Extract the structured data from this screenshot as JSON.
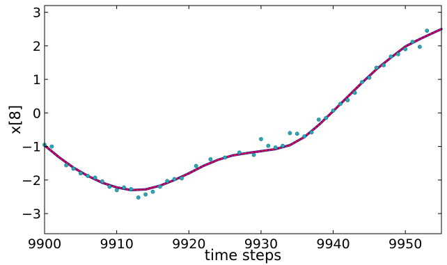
{
  "chart_data": {
    "type": "line",
    "xlabel": "time steps",
    "ylabel": "x[8]",
    "xlim": [
      9900,
      9955
    ],
    "ylim": [
      -3.6,
      3.2
    ],
    "x_ticks": [
      9900,
      9910,
      9920,
      9930,
      9940,
      9950
    ],
    "y_ticks": [
      -3,
      -2,
      -1,
      0,
      1,
      2,
      3
    ],
    "grid": false,
    "series": [
      {
        "style": "solid-line",
        "color": "#1a1aa6",
        "x": [
          9900,
          9902,
          9904,
          9906,
          9908,
          9910,
          9912,
          9914,
          9916,
          9918,
          9920,
          9922,
          9924,
          9926,
          9928,
          9930,
          9932,
          9934,
          9936,
          9938,
          9940,
          9942,
          9944,
          9946,
          9948,
          9950,
          9952,
          9954,
          9955
        ],
        "y": [
          -0.97,
          -1.32,
          -1.63,
          -1.88,
          -2.08,
          -2.22,
          -2.3,
          -2.28,
          -2.17,
          -2.0,
          -1.8,
          -1.58,
          -1.4,
          -1.27,
          -1.2,
          -1.14,
          -1.08,
          -0.96,
          -0.72,
          -0.36,
          0.05,
          0.48,
          0.9,
          1.3,
          1.65,
          1.98,
          2.2,
          2.4,
          2.5
        ]
      },
      {
        "style": "dotted-line",
        "color": "#ff0033",
        "x": [
          9900,
          9902,
          9904,
          9906,
          9908,
          9910,
          9912,
          9914,
          9916,
          9918,
          9920,
          9922,
          9924,
          9926,
          9928,
          9930,
          9932,
          9934,
          9936,
          9938,
          9940,
          9942,
          9944,
          9946,
          9948,
          9950,
          9952,
          9954,
          9955
        ],
        "y": [
          -0.97,
          -1.32,
          -1.63,
          -1.88,
          -2.08,
          -2.22,
          -2.3,
          -2.28,
          -2.17,
          -2.0,
          -1.8,
          -1.58,
          -1.4,
          -1.27,
          -1.2,
          -1.14,
          -1.08,
          -0.96,
          -0.72,
          -0.36,
          0.05,
          0.48,
          0.9,
          1.3,
          1.65,
          1.98,
          2.2,
          2.4,
          2.5
        ]
      },
      {
        "style": "markers",
        "color": "#2aa7b8",
        "x": [
          9900,
          9901,
          9903,
          9904,
          9905,
          9906,
          9907,
          9908,
          9909,
          9910,
          9911,
          9912,
          9913,
          9914,
          9915,
          9916,
          9917,
          9918,
          9919,
          9921,
          9923,
          9925,
          9927,
          9929,
          9930,
          9931,
          9932,
          9933,
          9934,
          9935,
          9936,
          9937,
          9938,
          9939,
          9940,
          9941,
          9942,
          9943,
          9944,
          9945,
          9946,
          9947,
          9948,
          9949,
          9950,
          9951,
          9952,
          9953
        ],
        "y": [
          -0.95,
          -1.0,
          -1.56,
          -1.66,
          -1.8,
          -1.88,
          -1.93,
          -2.04,
          -2.2,
          -2.3,
          -2.22,
          -2.27,
          -2.52,
          -2.43,
          -2.35,
          -2.2,
          -2.03,
          -1.97,
          -1.95,
          -1.58,
          -1.38,
          -1.33,
          -1.18,
          -1.25,
          -0.78,
          -0.98,
          -1.03,
          -0.98,
          -0.6,
          -0.62,
          -0.7,
          -0.58,
          -0.2,
          -0.15,
          0.07,
          0.27,
          0.38,
          0.6,
          0.92,
          1.05,
          1.35,
          1.42,
          1.68,
          1.75,
          1.9,
          2.12,
          1.97,
          2.45
        ]
      }
    ]
  }
}
